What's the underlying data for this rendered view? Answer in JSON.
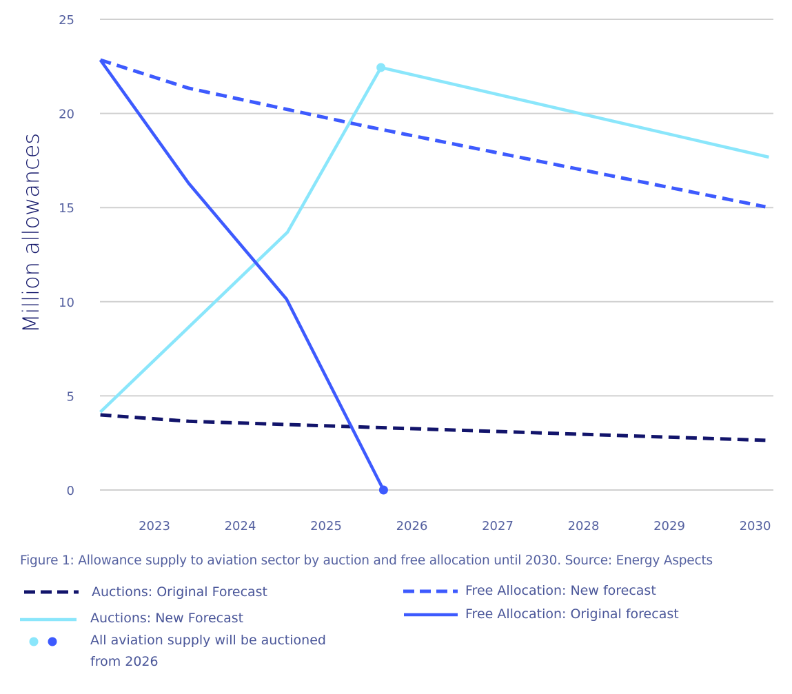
{
  "chart_data": {
    "type": "line",
    "title": "",
    "caption": "Figure 1: Allowance supply to aviation sector by auction and free allocation until 2030. Source: Energy Aspects",
    "xlabel": "",
    "ylabel": "Million allowances",
    "xlim": [
      2022.37,
      2030.2
    ],
    "ylim": [
      0,
      25
    ],
    "x_ticks": [
      2023,
      2024,
      2025,
      2026,
      2027,
      2028,
      2029,
      2030
    ],
    "x_tick_labels": [
      "2023",
      "2024",
      "2025",
      "2026",
      "2027",
      "2028",
      "2029",
      "2030"
    ],
    "y_ticks": [
      0,
      5,
      10,
      15,
      20,
      25
    ],
    "y_tick_labels": [
      "0",
      "5",
      "10",
      "15",
      "20",
      "25"
    ],
    "grid": "horizontal",
    "legend_position": "bottom",
    "series": [
      {
        "name": "Auctions: Original Forecast",
        "style": "dashed",
        "color": "#12146b",
        "x": [
          2022.37,
          2023.4,
          2030.12
        ],
        "values": [
          3.99,
          3.65,
          2.64
        ]
      },
      {
        "name": "Auctions: New Forecast",
        "style": "solid",
        "color": "#8ae6fb",
        "x": [
          2022.37,
          2024.55,
          2025.64,
          2030.16
        ],
        "values": [
          4.14,
          13.69,
          22.44,
          17.68
        ],
        "marker_at": 2
      },
      {
        "name": "Free Allocation: New forecast",
        "style": "dashed",
        "color": "#3d5afe",
        "x": [
          2022.37,
          2023.4,
          2025.45,
          2030.12
        ],
        "values": [
          22.84,
          21.34,
          19.33,
          15.04
        ]
      },
      {
        "name": "Free Allocation: Original forecast",
        "style": "solid",
        "color": "#3d5afe",
        "x": [
          2022.37,
          2023.4,
          2024.54,
          2025.67
        ],
        "values": [
          22.84,
          16.29,
          10.14,
          0.0
        ],
        "marker_at": 3
      }
    ],
    "legend": [
      {
        "label": "Auctions: Original Forecast",
        "swatch": "dashed",
        "color": "#12146b"
      },
      {
        "label": "Auctions: New Forecast",
        "swatch": "solid",
        "color": "#8ae6fb"
      },
      {
        "label": "All aviation supply will be auctioned",
        "label2": "from 2026",
        "swatch": "dots",
        "colors": [
          "#8ae6fb",
          "#3d5afe"
        ]
      },
      {
        "label": "Free Allocation: New forecast",
        "swatch": "dashed",
        "color": "#3d5afe"
      },
      {
        "label": "Free Allocation: Original forecast",
        "swatch": "solid",
        "color": "#3d5afe"
      }
    ],
    "annotation": "All aviation supply will be auctioned from 2026"
  },
  "colors": {
    "grid": "#d0d0d0",
    "tick_text": "#5561a0",
    "axis_title": "#14186b"
  }
}
